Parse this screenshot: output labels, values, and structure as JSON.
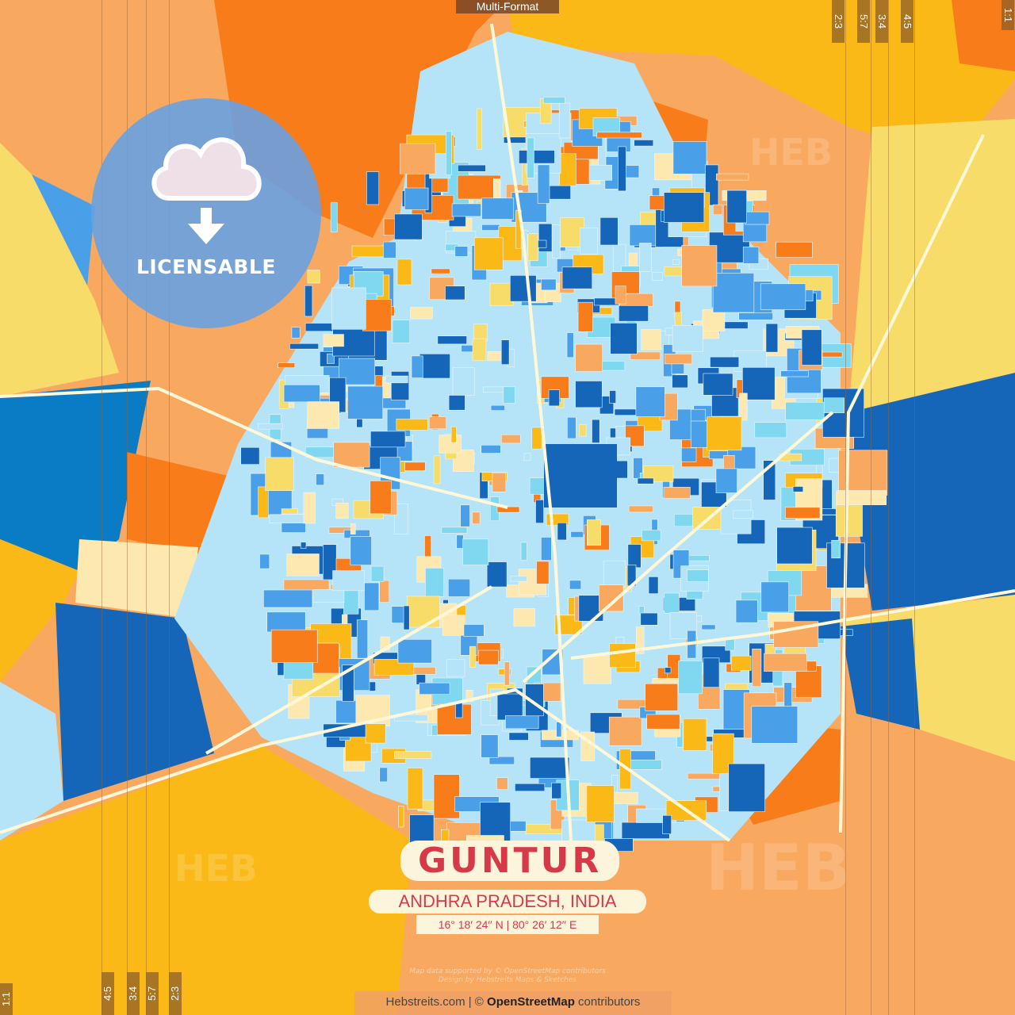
{
  "header": {
    "format_label": "Multi-Format"
  },
  "crop_marks": {
    "top": [
      "2:3",
      "5:7",
      "3:4",
      "4:5",
      "1:1"
    ],
    "bottom": [
      "1:1",
      "4:5",
      "3:4",
      "5:7",
      "2:3"
    ]
  },
  "badge": {
    "icon": "cloud-download-icon",
    "label": "LICENSABLE"
  },
  "title": {
    "city": "GUNTUR",
    "region": "ANDHRA PRADESH, INDIA",
    "coordinates": "16°  18′  24′′ N  |  80°  26′  12′′ E"
  },
  "credits": {
    "line1": "Map data supported by © OpenStreetMap contributors",
    "line2": "Design by Hebstreits Maps & Sketches"
  },
  "attribution": {
    "site": "Hebstreits.com | © ",
    "osm": "OpenStreetMap",
    "suffix": " contributors"
  },
  "watermark": "HEB",
  "colors": {
    "dark_blue": "#1565b8",
    "mid_blue": "#4aa0e8",
    "light_blue": "#b5e3f7",
    "cyan": "#7fd8f0",
    "orange": "#f87c1a",
    "light_orange": "#f9a860",
    "yellow": "#fbb918",
    "pale_yellow": "#f7dc6a",
    "cream": "#fde9b0",
    "title_red": "#d63a48"
  }
}
